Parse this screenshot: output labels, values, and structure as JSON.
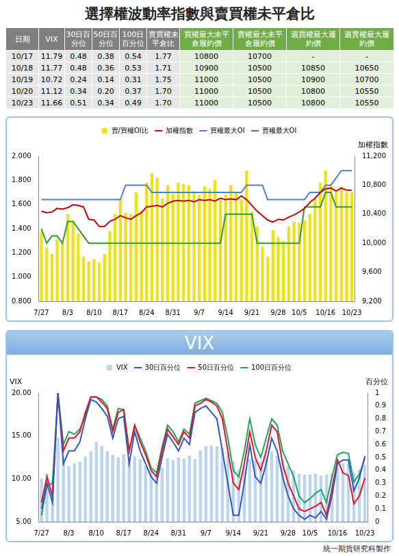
{
  "title": "選擇權波動率指數與賣買權未平倉比",
  "table": {
    "header": [
      "日期",
      "VIX",
      "30日百分位",
      "50日百分位",
      "100日百分位",
      "賣買權未平倉比",
      "買權最大未平倉履約價",
      "賣權最大未平倉履約價",
      "週買權最大履約價",
      "週賣權最大履約價"
    ],
    "rows": [
      [
        "10/17",
        "11.79",
        "0.48",
        "0.38",
        "0.54",
        "1.77",
        "10800",
        "10700",
        "-",
        "-"
      ],
      [
        "10/18",
        "11.77",
        "0.48",
        "0.36",
        "0.53",
        "1.71",
        "10900",
        "10500",
        "10850",
        "10650"
      ],
      [
        "10/19",
        "10.72",
        "0.24",
        "0.14",
        "0.31",
        "1.75",
        "11000",
        "10500",
        "10900",
        "10700"
      ],
      [
        "10/20",
        "11.12",
        "0.34",
        "0.20",
        "0.37",
        "1.70",
        "11000",
        "10500",
        "10800",
        "10550"
      ],
      [
        "10/23",
        "11.66",
        "0.51",
        "0.34",
        "0.49",
        "1.70",
        "11000",
        "10500",
        "10800",
        "10550"
      ]
    ]
  },
  "chart_data": [
    {
      "type": "bar",
      "categories": [
        "7/27",
        null,
        null,
        null,
        null,
        "8/3",
        null,
        null,
        null,
        null,
        "8/10",
        null,
        null,
        null,
        null,
        "8/17",
        null,
        null,
        null,
        null,
        "8/24",
        null,
        null,
        null,
        null,
        "8/31",
        null,
        null,
        null,
        null,
        "9/7",
        null,
        null,
        null,
        null,
        "9/14",
        null,
        null,
        null,
        null,
        "9/21",
        null,
        null,
        null,
        null,
        "9/28",
        null,
        null,
        null,
        "10/5",
        null,
        null,
        null,
        null,
        "10/16",
        null,
        null,
        null,
        null,
        "10/23"
      ],
      "series": [
        {
          "name": "賣/買權OI比",
          "type": "bar",
          "color": "#ede21a",
          "values": [
            1.38,
            1.24,
            1.19,
            1.31,
            1.28,
            1.52,
            1.47,
            1.36,
            1.17,
            1.13,
            1.15,
            1.12,
            1.19,
            1.38,
            1.52,
            1.64,
            1.53,
            1.52,
            1.7,
            1.55,
            1.78,
            1.86,
            1.82,
            1.65,
            1.76,
            1.69,
            1.78,
            1.77,
            1.76,
            1.71,
            1.68,
            1.75,
            1.73,
            1.8,
            1.64,
            1.68,
            1.76,
            1.7,
            1.64,
            1.88,
            1.54,
            1.42,
            1.25,
            1.17,
            1.39,
            1.33,
            1.3,
            1.42,
            1.46,
            1.45,
            1.47,
            1.52,
            1.65,
            1.78,
            1.88,
            1.77,
            1.71,
            1.75,
            1.7,
            1.7
          ]
        },
        {
          "name": "加權指數",
          "type": "line",
          "axis": "y2",
          "color": "#c00000",
          "values": [
            10440,
            10420,
            10430,
            10480,
            10470,
            10490,
            10530,
            10520,
            10500,
            10330,
            10320,
            10230,
            10230,
            10300,
            10330,
            10380,
            10350,
            10330,
            10380,
            10420,
            10500,
            10510,
            10520,
            10500,
            10550,
            10580,
            10590,
            10580,
            10590,
            10570,
            10600,
            10590,
            10600,
            10580,
            10620,
            10600,
            10610,
            10600,
            10650,
            10600,
            10520,
            10440,
            10380,
            10320,
            10290,
            10330,
            10320,
            10360,
            10390,
            10430,
            10480,
            10560,
            10620,
            10700,
            10750,
            10760,
            10720,
            10760,
            10730,
            10730
          ]
        },
        {
          "name": "買權最大OI",
          "type": "line",
          "axis": "y2",
          "color": "#4a7fd4",
          "values": [
            10600,
            10600,
            10600,
            10600,
            10600,
            10600,
            10600,
            10600,
            10600,
            10600,
            10600,
            10600,
            10600,
            10600,
            10600,
            10600,
            10800,
            10800,
            10800,
            10800,
            10800,
            10700,
            10700,
            10700,
            10700,
            10700,
            10700,
            10700,
            10700,
            10700,
            10700,
            10700,
            10700,
            10700,
            10700,
            10700,
            10700,
            10700,
            10700,
            10800,
            10800,
            10800,
            10800,
            10600,
            10600,
            10600,
            10600,
            10600,
            10600,
            10600,
            10600,
            10700,
            10700,
            10700,
            10800,
            10800,
            10900,
            11000,
            11000,
            11000
          ]
        },
        {
          "name": "賣權最大OI",
          "type": "line",
          "axis": "y2",
          "color": "#2e9a2e",
          "values": [
            10200,
            10000,
            10100,
            10100,
            10000,
            10300,
            10300,
            10200,
            10100,
            10000,
            10000,
            10000,
            10000,
            10000,
            10000,
            10000,
            10000,
            10000,
            10000,
            10000,
            10000,
            10000,
            10000,
            10000,
            10000,
            10000,
            10000,
            10000,
            10000,
            10000,
            10000,
            10000,
            10000,
            10000,
            10000,
            10400,
            10400,
            10400,
            10400,
            10400,
            10400,
            10000,
            10000,
            10000,
            10000,
            10000,
            10000,
            10000,
            10000,
            10000,
            10500,
            10500,
            10500,
            10500,
            10700,
            10700,
            10500,
            10500,
            10500,
            10500
          ]
        }
      ],
      "ylim": [
        0.8,
        2.0
      ],
      "yticks": [
        {
          "value": 0.8,
          "label": "0.800"
        },
        {
          "value": 1.0,
          "label": "1.000"
        },
        {
          "value": 1.2,
          "label": "1.200"
        },
        {
          "value": 1.4,
          "label": "1.400"
        },
        {
          "value": 1.6,
          "label": "1.600"
        },
        {
          "value": 1.8,
          "label": "1.800"
        },
        {
          "value": 2.0,
          "label": "2.000"
        }
      ],
      "y2label": "加權指數",
      "y2lim": [
        9200,
        11200
      ],
      "y2ticks": [
        {
          "value": 9200,
          "label": "9,200"
        },
        {
          "value": 9600,
          "label": "9,600"
        },
        {
          "value": 10000,
          "label": "10,000"
        },
        {
          "value": 10400,
          "label": "10,400"
        },
        {
          "value": 10800,
          "label": "10,800"
        },
        {
          "value": 11200,
          "label": "11,200"
        }
      ],
      "legend": "top",
      "grid": false
    },
    {
      "type": "bar",
      "title": "VIX",
      "categories": [
        "7/27",
        null,
        null,
        null,
        null,
        "8/3",
        null,
        null,
        null,
        null,
        "8/10",
        null,
        null,
        null,
        null,
        "8/17",
        null,
        null,
        null,
        null,
        "8/24",
        null,
        null,
        null,
        null,
        "8/31",
        null,
        null,
        null,
        null,
        "9/7",
        null,
        null,
        null,
        null,
        "9/14",
        null,
        null,
        null,
        null,
        "9/21",
        null,
        null,
        null,
        null,
        "9/28",
        null,
        null,
        null,
        "10/5",
        null,
        null,
        null,
        null,
        "10/16",
        null,
        null,
        null,
        null,
        "10/23"
      ],
      "series": [
        {
          "name": "VIX",
          "type": "bar",
          "color": "#bcd5ef",
          "values": [
            10.0,
            10.6,
            9.8,
            14.8,
            12.5,
            11.5,
            11.8,
            12.0,
            12.6,
            13.2,
            14.3,
            13.8,
            13.2,
            12.8,
            12.5,
            12.9,
            11.9,
            12.6,
            12.3,
            11.5,
            11.0,
            10.6,
            11.3,
            12.4,
            12.2,
            12.5,
            12.4,
            12.7,
            12.3,
            13.3,
            13.8,
            13.9,
            13.8,
            13.6,
            13.0,
            12.0,
            11.1,
            11.3,
            12.3,
            12.2,
            12.0,
            12.6,
            13.2,
            12.7,
            12.2,
            11.5,
            11.0,
            10.6,
            10.5,
            10.5,
            10.6,
            10.4,
            10.5,
            10.6,
            11.3,
            11.79,
            11.77,
            10.72,
            11.12,
            11.66
          ]
        },
        {
          "name": "30日百分位",
          "type": "line",
          "axis": "y2",
          "color": "#2f55c6",
          "values": [
            0.1,
            0.3,
            0.15,
            1.0,
            0.45,
            0.55,
            0.55,
            0.62,
            0.8,
            0.95,
            0.93,
            0.88,
            0.82,
            0.65,
            0.8,
            0.82,
            0.45,
            0.7,
            0.55,
            0.45,
            0.35,
            0.3,
            0.5,
            0.68,
            0.62,
            0.55,
            0.65,
            0.6,
            0.85,
            0.88,
            0.9,
            0.85,
            0.8,
            0.55,
            0.3,
            0.05,
            0.05,
            0.3,
            0.6,
            0.35,
            0.3,
            0.45,
            0.65,
            0.55,
            0.35,
            0.2,
            0.1,
            0.05,
            0.02,
            0.05,
            0.03,
            0.08,
            0.02,
            0.2,
            0.45,
            0.48,
            0.48,
            0.24,
            0.34,
            0.51
          ]
        },
        {
          "name": "50日百分位",
          "type": "line",
          "axis": "y2",
          "color": "#e3141c",
          "values": [
            0.15,
            0.35,
            0.2,
            1.0,
            0.55,
            0.65,
            0.65,
            0.7,
            0.85,
            0.97,
            0.97,
            0.93,
            0.88,
            0.7,
            0.85,
            0.87,
            0.55,
            0.75,
            0.62,
            0.52,
            0.4,
            0.35,
            0.55,
            0.72,
            0.66,
            0.6,
            0.7,
            0.65,
            0.9,
            0.92,
            0.95,
            0.93,
            0.9,
            0.8,
            0.55,
            0.3,
            0.25,
            0.45,
            0.7,
            0.5,
            0.4,
            0.55,
            0.75,
            0.7,
            0.45,
            0.3,
            0.2,
            0.1,
            0.08,
            0.1,
            0.12,
            0.15,
            0.05,
            0.25,
            0.48,
            0.38,
            0.36,
            0.14,
            0.2,
            0.34
          ]
        },
        {
          "name": "100日百分位",
          "type": "line",
          "axis": "y2",
          "color": "#1fa35f",
          "values": [
            0.05,
            0.28,
            0.3,
            1.0,
            0.6,
            0.7,
            0.68,
            0.72,
            0.82,
            0.97,
            0.97,
            0.95,
            0.9,
            0.72,
            0.88,
            0.87,
            0.55,
            0.75,
            0.65,
            0.55,
            0.42,
            0.38,
            0.58,
            0.75,
            0.7,
            0.62,
            0.72,
            0.68,
            0.92,
            0.94,
            0.96,
            0.94,
            0.92,
            0.85,
            0.65,
            0.4,
            0.35,
            0.55,
            0.8,
            0.6,
            0.5,
            0.65,
            0.8,
            0.75,
            0.55,
            0.45,
            0.35,
            0.2,
            0.15,
            0.18,
            0.22,
            0.25,
            0.15,
            0.35,
            0.52,
            0.54,
            0.53,
            0.31,
            0.37,
            0.49
          ]
        }
      ],
      "ylabel": "VIX",
      "ylim": [
        5,
        20
      ],
      "yticks": [
        {
          "value": 5,
          "label": "5.00"
        },
        {
          "value": 10,
          "label": "10.00"
        },
        {
          "value": 15,
          "label": "15.00"
        },
        {
          "value": 20,
          "label": "20.00"
        }
      ],
      "y2label": "百分位",
      "y2lim": [
        0,
        1
      ],
      "y2ticks": [
        0,
        0.1,
        0.2,
        0.3,
        0.4,
        0.5,
        0.6,
        0.7,
        0.8,
        0.9,
        1
      ],
      "legend": "top",
      "grid": false
    }
  ],
  "footer": "統一期貨研究科製作"
}
